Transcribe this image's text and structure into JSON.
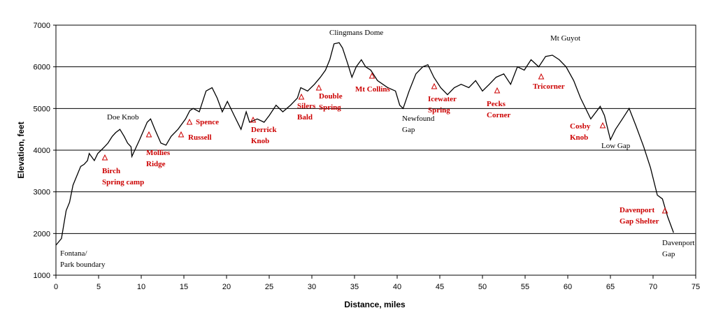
{
  "chart_data": {
    "type": "line",
    "xlabel": "Distance, miles",
    "ylabel": "Elevation, feet",
    "color": "#000000",
    "x": [
      0,
      0.65,
      1.2,
      1.6,
      2.0,
      2.5,
      2.9,
      3.3,
      3.7,
      3.9,
      4.5,
      4.9,
      5.3,
      5.7,
      6.1,
      6.6,
      7.0,
      7.5,
      8.0,
      8.4,
      8.8,
      8.9,
      9.8,
      10.7,
      11.1,
      11.6,
      12.3,
      12.9,
      13.5,
      14.3,
      15.2,
      15.7,
      16.1,
      16.8,
      17.6,
      18.3,
      18.9,
      19.5,
      20.1,
      20.9,
      21.7,
      22.3,
      22.7,
      23.6,
      24.4,
      25.0,
      25.8,
      26.6,
      27.5,
      28.3,
      28.7,
      29.5,
      30.3,
      31.0,
      31.6,
      32.1,
      32.6,
      33.2,
      33.6,
      34.2,
      34.7,
      35.2,
      35.8,
      36.3,
      36.9,
      37.7,
      38.9,
      39.8,
      40.3,
      40.7,
      41.4,
      42.2,
      43.0,
      43.6,
      44.3,
      45.1,
      45.9,
      46.7,
      47.5,
      48.4,
      49.2,
      50.0,
      50.8,
      51.6,
      52.5,
      53.3,
      54.1,
      54.9,
      55.7,
      56.6,
      57.4,
      58.2,
      59.0,
      59.8,
      60.7,
      61.5,
      62.7,
      63.8,
      64.3,
      65.0,
      65.6,
      66.4,
      67.2,
      68.0,
      68.9,
      69.7,
      70.5,
      71.1,
      71.7,
      72.4
    ],
    "values": [
      1720,
      1880,
      2550,
      2750,
      3160,
      3410,
      3610,
      3660,
      3750,
      3920,
      3750,
      3920,
      4000,
      4080,
      4170,
      4330,
      4420,
      4500,
      4330,
      4170,
      4080,
      3850,
      4250,
      4670,
      4750,
      4500,
      4170,
      4120,
      4330,
      4500,
      4750,
      4950,
      5000,
      4920,
      5420,
      5500,
      5250,
      4920,
      5170,
      4830,
      4500,
      4920,
      4670,
      4750,
      4670,
      4830,
      5080,
      4920,
      5080,
      5250,
      5500,
      5420,
      5580,
      5750,
      5920,
      6170,
      6550,
      6580,
      6450,
      6080,
      5750,
      6000,
      6170,
      6000,
      5920,
      5670,
      5500,
      5420,
      5080,
      5000,
      5420,
      5830,
      6000,
      6050,
      5750,
      5500,
      5330,
      5500,
      5580,
      5500,
      5670,
      5420,
      5580,
      5750,
      5830,
      5580,
      6000,
      5920,
      6170,
      6000,
      6250,
      6280,
      6170,
      6000,
      5670,
      5250,
      4750,
      5050,
      4830,
      4250,
      4500,
      4750,
      5000,
      4580,
      4080,
      3580,
      2920,
      2830,
      2410,
      2020
    ],
    "xlim": [
      0,
      75
    ],
    "ylim": [
      1000,
      7000
    ],
    "xticks": [
      0,
      5,
      10,
      15,
      20,
      25,
      30,
      35,
      40,
      45,
      50,
      55,
      60,
      65,
      70,
      75
    ],
    "yticks": [
      1000,
      2000,
      3000,
      4000,
      5000,
      6000,
      7000
    ],
    "grid": true,
    "annotations": [
      {
        "lines": [
          "Fontana/",
          "Park boundary"
        ],
        "color": "#000000"
      },
      {
        "lines": [
          "Doe Knob"
        ],
        "color": "#000000"
      },
      {
        "lines": [
          "Birch",
          "Spring camp"
        ],
        "color": "#cc0000"
      },
      {
        "lines": [
          "Mollies",
          "Ridge"
        ],
        "color": "#cc0000"
      },
      {
        "lines": [
          "Russell"
        ],
        "color": "#cc0000"
      },
      {
        "lines": [
          "Spence"
        ],
        "color": "#cc0000"
      },
      {
        "lines": [
          "Derrick",
          "Knob"
        ],
        "color": "#cc0000"
      },
      {
        "lines": [
          "Silers",
          "Bald"
        ],
        "color": "#cc0000"
      },
      {
        "lines": [
          "Double",
          "Spring"
        ],
        "color": "#cc0000"
      },
      {
        "lines": [
          "Clingmans Dome"
        ],
        "color": "#000000"
      },
      {
        "lines": [
          "Mt Collins"
        ],
        "color": "#cc0000"
      },
      {
        "lines": [
          "Newfound",
          "Gap"
        ],
        "color": "#000000"
      },
      {
        "lines": [
          "Icewater",
          "Spring"
        ],
        "color": "#cc0000"
      },
      {
        "lines": [
          "Pecks",
          "Corner"
        ],
        "color": "#cc0000"
      },
      {
        "lines": [
          "Mt Guyot"
        ],
        "color": "#000000"
      },
      {
        "lines": [
          "Tricorner"
        ],
        "color": "#cc0000"
      },
      {
        "lines": [
          "Cosby",
          "Knob"
        ],
        "color": "#cc0000"
      },
      {
        "lines": [
          "Low Gap"
        ],
        "color": "#000000"
      },
      {
        "lines": [
          "Davenport",
          "Gap Shelter"
        ],
        "color": "#cc0000"
      },
      {
        "lines": [
          "Davenport",
          "Gap"
        ],
        "color": "#000000"
      }
    ]
  }
}
